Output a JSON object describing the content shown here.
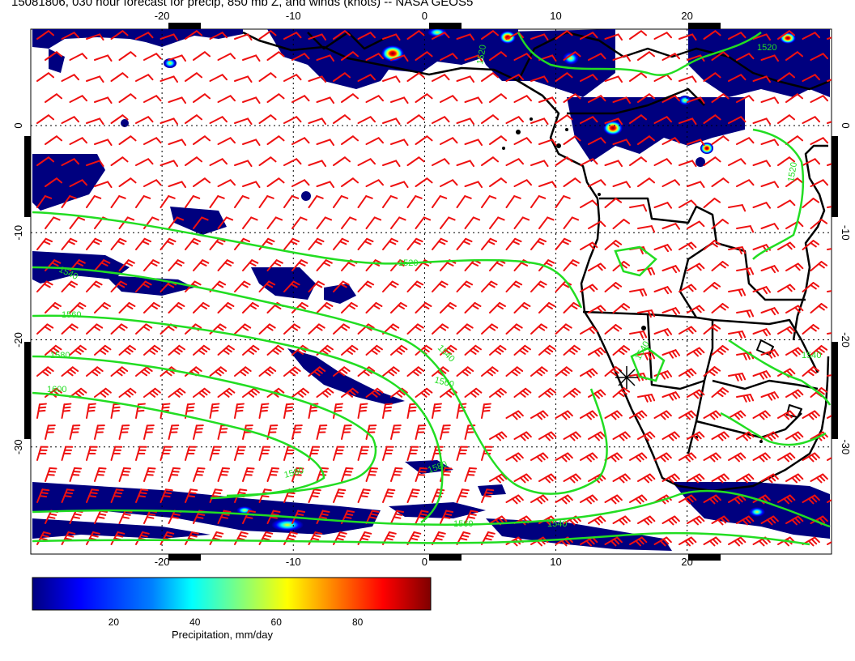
{
  "title": "15081806, 030 hour forecast for precip, 850 mb Z, and winds (knots) -- NASA GEOS5",
  "map": {
    "lon_range": [
      -30,
      31
    ],
    "lat_range": [
      -40,
      9
    ],
    "lon_ticks": [
      "-20",
      "-10",
      "0",
      "10",
      "20"
    ],
    "lat_ticks": [
      "0",
      "-10",
      "-20",
      "-30"
    ],
    "grid": true,
    "projection": "cylindrical equidistant"
  },
  "contours": {
    "variable": "850 mb geopotential height",
    "labels": [
      "1520",
      "1520",
      "1520",
      "1520",
      "1540",
      "1540",
      "1540",
      "1560",
      "1560",
      "1580",
      "1580",
      "1600",
      "1580",
      "1560",
      "1540",
      "1540"
    ],
    "color": "#22dd22"
  },
  "colors": {
    "contour": "#22dd22",
    "wind_barb": "#ee1111",
    "coastline": "#000000",
    "grid": "#000000",
    "precip_scale": [
      "#00007f",
      "#0000ff",
      "#007fff",
      "#00ffff",
      "#7fff7f",
      "#ffff00",
      "#ff7f00",
      "#ff0000",
      "#7f0000"
    ]
  },
  "colorbar": {
    "label": "Precipitation, mm/day",
    "ticks": [
      "20",
      "40",
      "60",
      "80"
    ],
    "range": [
      0,
      98
    ]
  }
}
